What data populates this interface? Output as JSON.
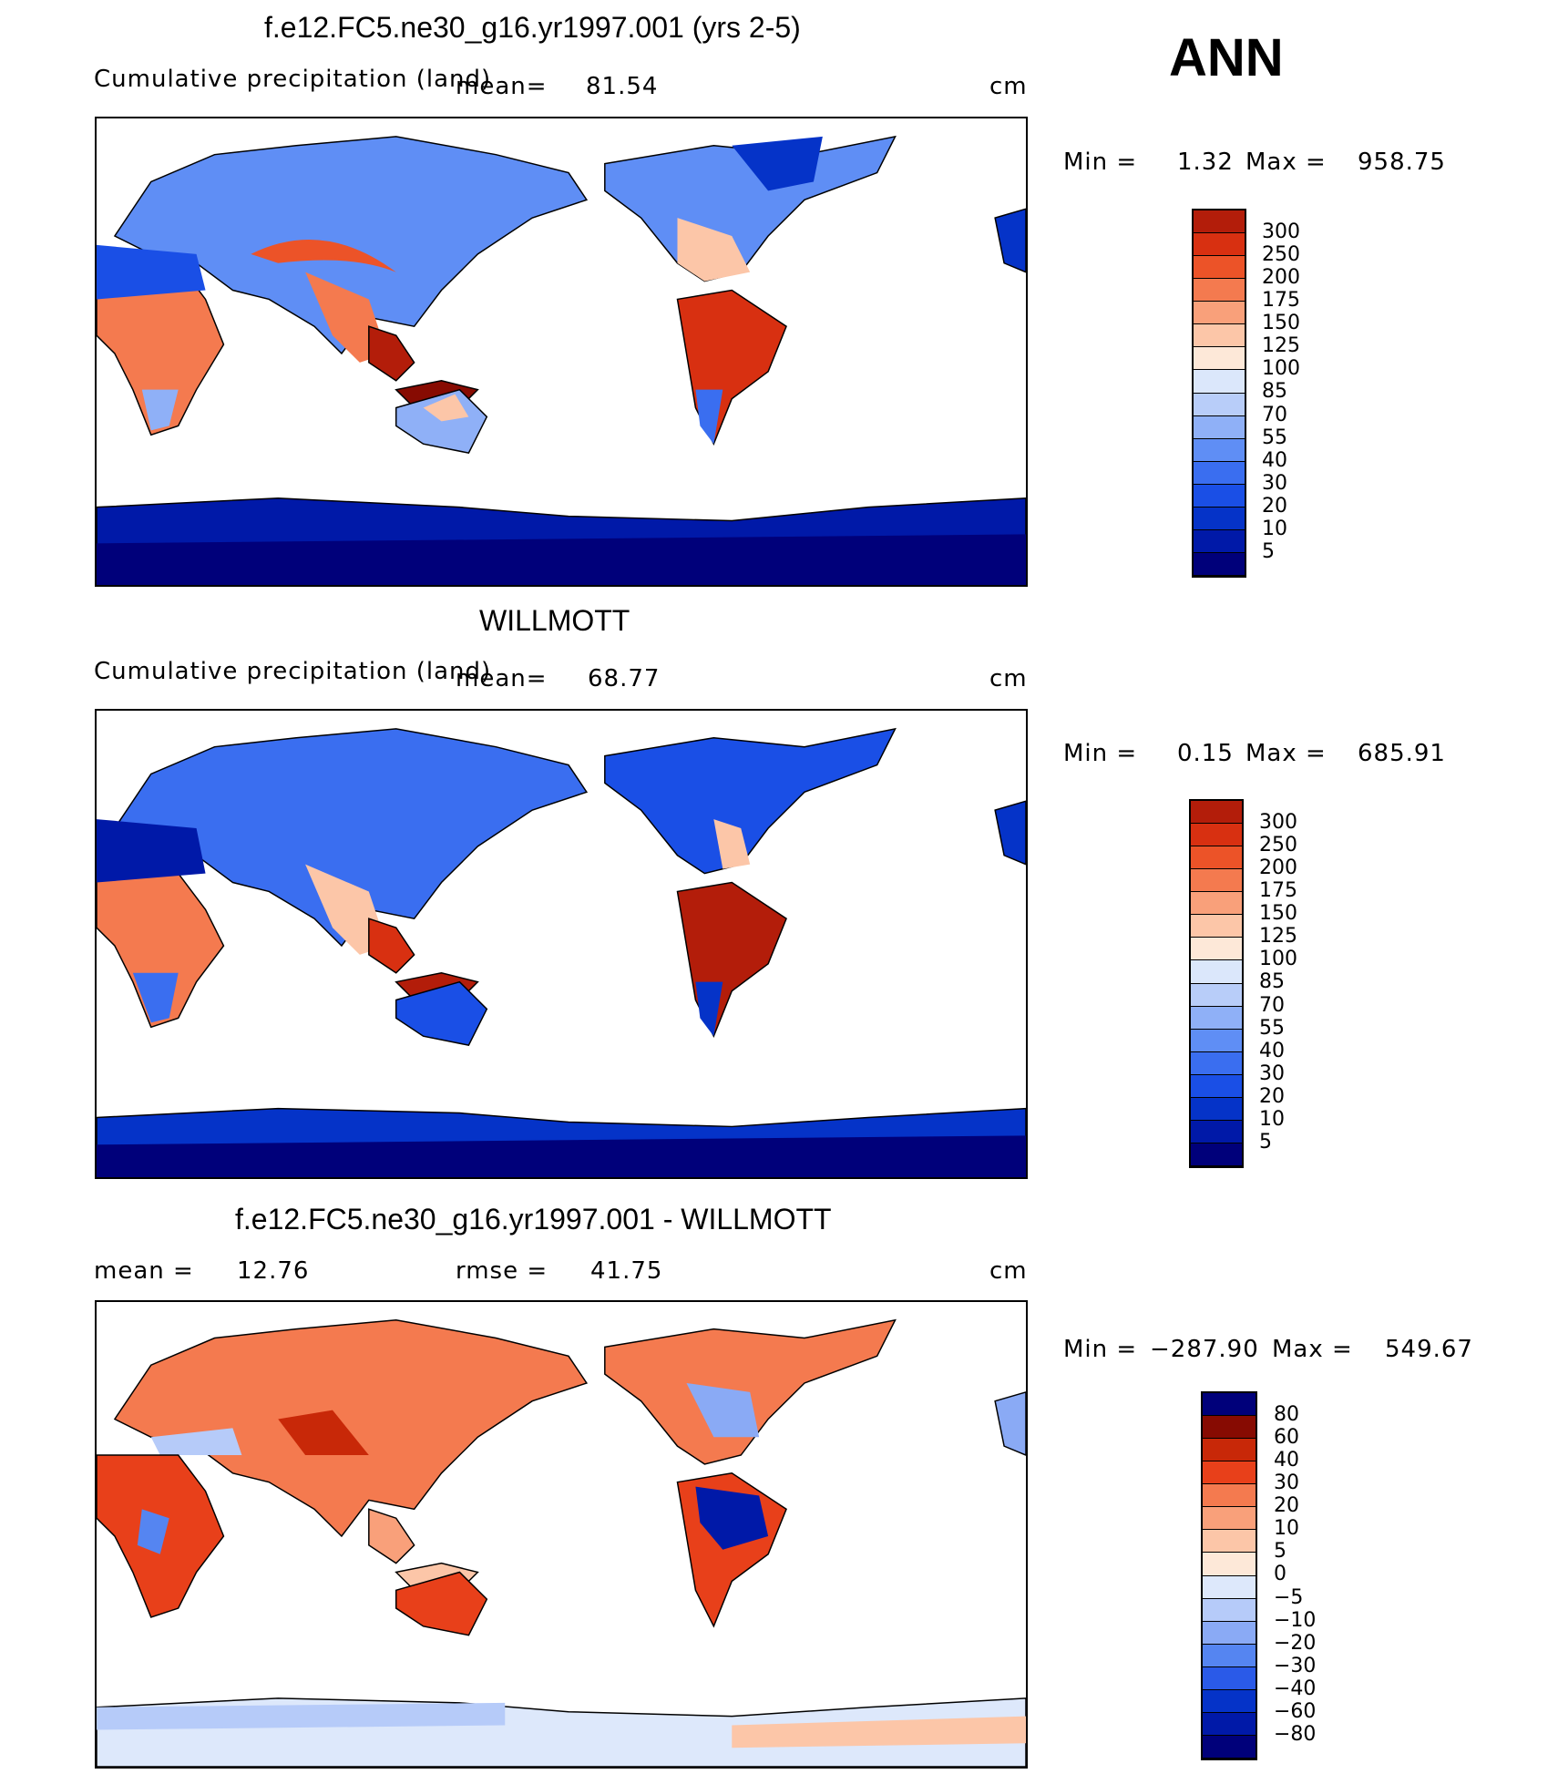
{
  "season": "ANN",
  "colors": {
    "abs_palette": [
      "#00007a",
      "#0019a8",
      "#0533c8",
      "#1a4fe6",
      "#3a6ef0",
      "#5f8ef5",
      "#8fb0f7",
      "#b8cdf9",
      "#dbe7fb",
      "#fde8d8",
      "#fcc6a8",
      "#f9a07a",
      "#f47a4f",
      "#ec5328",
      "#d83011",
      "#b31d0a",
      "#870b02"
    ],
    "diff_palette": [
      "#00007a",
      "#0019a8",
      "#0533c8",
      "#2a5ae8",
      "#5585f1",
      "#8aaaf5",
      "#b6cbf9",
      "#dde8fb",
      "#fde8d8",
      "#fcc6a8",
      "#f9a07a",
      "#f47a4f",
      "#e8401a",
      "#c82808",
      "#870b02"
    ],
    "coastline": "#000000",
    "ocean": "#ffffff"
  },
  "panels": [
    {
      "id": "model",
      "title": "f.e12.FC5.ne30_g16.yr1997.001 (yrs 2-5)",
      "variable": "Cumulative precipitation (land)",
      "mean_label": "mean=",
      "mean_value": "81.54",
      "units": "cm",
      "min_label": "Min =",
      "min_value": "1.32",
      "max_label": "Max =",
      "max_value": "958.75",
      "colorbar_labels": [
        "300",
        "250",
        "200",
        "175",
        "150",
        "125",
        "100",
        "85",
        "70",
        "55",
        "40",
        "30",
        "20",
        "10",
        "5"
      ]
    },
    {
      "id": "obs",
      "title": "WILLMOTT",
      "variable": "Cumulative precipitation (land)",
      "mean_label": "mean=",
      "mean_value": "68.77",
      "units": "cm",
      "min_label": "Min =",
      "min_value": "0.15",
      "max_label": "Max =",
      "max_value": "685.91",
      "colorbar_labels": [
        "300",
        "250",
        "200",
        "175",
        "150",
        "125",
        "100",
        "85",
        "70",
        "55",
        "40",
        "30",
        "20",
        "10",
        "5"
      ]
    },
    {
      "id": "diff",
      "title": "f.e12.FC5.ne30_g16.yr1997.001 - WILLMOTT",
      "mean_label": "mean =",
      "mean_value": "12.76",
      "rmse_label": "rmse =",
      "rmse_value": "41.75",
      "units": "cm",
      "min_label": "Min =",
      "min_value": "−287.90",
      "max_label": "Max =",
      "max_value": "549.67",
      "colorbar_labels": [
        "80",
        "60",
        "40",
        "30",
        "20",
        "10",
        "5",
        "0",
        "−5",
        "−10",
        "−20",
        "−30",
        "−40",
        "−60",
        "−80"
      ]
    }
  ]
}
